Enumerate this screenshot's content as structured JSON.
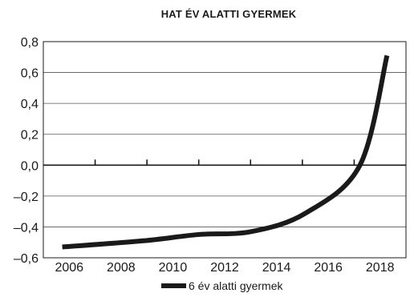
{
  "chart_data": {
    "type": "line",
    "title": "HAT ÉV ALATTI GYERMEK",
    "x": [
      2006,
      2009,
      2011,
      2013,
      2015,
      2017,
      2018
    ],
    "series": [
      {
        "name": "6 év alatti gyermek",
        "values": [
          -0.53,
          -0.49,
          -0.45,
          -0.43,
          -0.31,
          0.0,
          0.71
        ],
        "color": "#1a1a1a"
      }
    ],
    "x_tick_labels": [
      "2006",
      "2008",
      "2010",
      "2012",
      "2014",
      "2016",
      "2018"
    ],
    "y_tick_labels": [
      "0,8",
      "0,6",
      "0,4",
      "0,2",
      "0,0",
      "–0,2",
      "–0,4",
      "–0,6"
    ],
    "xlim": [
      2005.3,
      2018.7
    ],
    "ylim": [
      -0.6,
      0.8
    ],
    "grid": "horizontal",
    "legend_position": "bottom-center",
    "xlabel": "",
    "ylabel": ""
  }
}
